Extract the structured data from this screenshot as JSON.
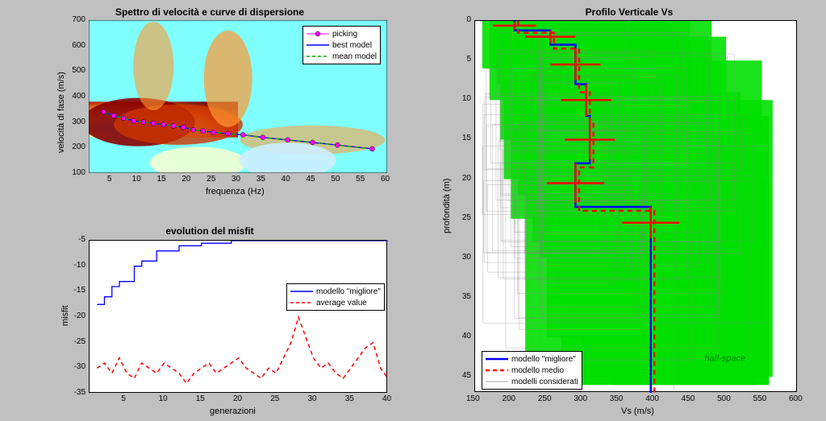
{
  "background_color": "#c0c0c0",
  "dispersion": {
    "title": "Spettro di velocità e curve di dispersione",
    "xlabel": "frequenza (Hz)",
    "ylabel": "velocità di fase (m/s)",
    "title_fontsize": 12,
    "label_fontsize": 11,
    "tick_fontsize": 10,
    "xlim": [
      0,
      60
    ],
    "ylim": [
      100,
      700
    ],
    "xticks": [
      5,
      10,
      15,
      20,
      25,
      30,
      35,
      40,
      45,
      50,
      55,
      60
    ],
    "yticks": [
      100,
      200,
      300,
      400,
      500,
      600,
      700
    ],
    "colormap_stops": [
      {
        "t": 0.0,
        "c": "#00ffff"
      },
      {
        "t": 0.2,
        "c": "#66ffff"
      },
      {
        "t": 0.4,
        "c": "#ffff66"
      },
      {
        "t": 0.6,
        "c": "#ff9933"
      },
      {
        "t": 0.8,
        "c": "#cc3300"
      },
      {
        "t": 1.0,
        "c": "#660000"
      }
    ],
    "picking_color": "#ff00ff",
    "picking_marker": "circle",
    "picking_marker_size": 6,
    "best_model_color": "#0000ff",
    "mean_model_color": "#00aa00",
    "mean_model_dash": "5,4",
    "picking_points": [
      {
        "x": 3,
        "y": 340
      },
      {
        "x": 5,
        "y": 325
      },
      {
        "x": 7,
        "y": 315
      },
      {
        "x": 9,
        "y": 305
      },
      {
        "x": 11,
        "y": 300
      },
      {
        "x": 13,
        "y": 295
      },
      {
        "x": 15,
        "y": 290
      },
      {
        "x": 17,
        "y": 285
      },
      {
        "x": 19,
        "y": 280
      },
      {
        "x": 21,
        "y": 270
      },
      {
        "x": 23,
        "y": 265
      },
      {
        "x": 25,
        "y": 260
      },
      {
        "x": 28,
        "y": 255
      },
      {
        "x": 31,
        "y": 250
      },
      {
        "x": 35,
        "y": 240
      },
      {
        "x": 40,
        "y": 230
      },
      {
        "x": 45,
        "y": 220
      },
      {
        "x": 50,
        "y": 210
      },
      {
        "x": 57,
        "y": 195
      }
    ],
    "legend": {
      "items": [
        {
          "label": "picking",
          "style": "marker",
          "color": "#ff00ff"
        },
        {
          "label": "best model",
          "style": "solid",
          "color": "#0000ff"
        },
        {
          "label": "mean model",
          "style": "dashed",
          "color": "#00aa00"
        }
      ]
    }
  },
  "misfit": {
    "title": "evolution del misfit",
    "xlabel": "generazioni",
    "ylabel": "misfit",
    "xlim": [
      0,
      40
    ],
    "ylim": [
      -35,
      -5
    ],
    "xticks": [
      5,
      10,
      15,
      20,
      25,
      30,
      35,
      40
    ],
    "yticks": [
      -35,
      -30,
      -25,
      -20,
      -15,
      -10,
      -5
    ],
    "best_color": "#0000ff",
    "avg_color": "#ff0000",
    "avg_dash": "5,4",
    "best_series": [
      {
        "x": 1,
        "y": -17.5
      },
      {
        "x": 2,
        "y": -16
      },
      {
        "x": 3,
        "y": -14
      },
      {
        "x": 4,
        "y": -13
      },
      {
        "x": 5,
        "y": -13
      },
      {
        "x": 6,
        "y": -10
      },
      {
        "x": 7,
        "y": -9
      },
      {
        "x": 8,
        "y": -9
      },
      {
        "x": 9,
        "y": -7
      },
      {
        "x": 10,
        "y": -7
      },
      {
        "x": 11,
        "y": -7
      },
      {
        "x": 12,
        "y": -6
      },
      {
        "x": 13,
        "y": -6
      },
      {
        "x": 14,
        "y": -6
      },
      {
        "x": 15,
        "y": -5.5
      },
      {
        "x": 16,
        "y": -5.5
      },
      {
        "x": 17,
        "y": -5.5
      },
      {
        "x": 18,
        "y": -5.5
      },
      {
        "x": 19,
        "y": -5
      },
      {
        "x": 20,
        "y": -5
      },
      {
        "x": 40,
        "y": -5
      }
    ],
    "avg_series": [
      {
        "x": 1,
        "y": -30
      },
      {
        "x": 2,
        "y": -29
      },
      {
        "x": 3,
        "y": -31
      },
      {
        "x": 4,
        "y": -28
      },
      {
        "x": 5,
        "y": -31
      },
      {
        "x": 6,
        "y": -32
      },
      {
        "x": 7,
        "y": -29
      },
      {
        "x": 8,
        "y": -30
      },
      {
        "x": 9,
        "y": -31
      },
      {
        "x": 10,
        "y": -29
      },
      {
        "x": 11,
        "y": -30
      },
      {
        "x": 12,
        "y": -31
      },
      {
        "x": 13,
        "y": -33
      },
      {
        "x": 14,
        "y": -31
      },
      {
        "x": 15,
        "y": -30
      },
      {
        "x": 16,
        "y": -29
      },
      {
        "x": 17,
        "y": -31
      },
      {
        "x": 18,
        "y": -30
      },
      {
        "x": 19,
        "y": -29
      },
      {
        "x": 20,
        "y": -28
      },
      {
        "x": 21,
        "y": -30
      },
      {
        "x": 22,
        "y": -31
      },
      {
        "x": 23,
        "y": -32
      },
      {
        "x": 24,
        "y": -30
      },
      {
        "x": 25,
        "y": -31
      },
      {
        "x": 26,
        "y": -28
      },
      {
        "x": 27,
        "y": -25
      },
      {
        "x": 28,
        "y": -20
      },
      {
        "x": 29,
        "y": -24
      },
      {
        "x": 30,
        "y": -28
      },
      {
        "x": 31,
        "y": -30
      },
      {
        "x": 32,
        "y": -29
      },
      {
        "x": 33,
        "y": -31
      },
      {
        "x": 34,
        "y": -32
      },
      {
        "x": 35,
        "y": -30
      },
      {
        "x": 36,
        "y": -28
      },
      {
        "x": 37,
        "y": -26
      },
      {
        "x": 38,
        "y": -25
      },
      {
        "x": 39,
        "y": -30
      },
      {
        "x": 40,
        "y": -32
      }
    ],
    "legend": {
      "items": [
        {
          "label": "modello \"migliore\"",
          "style": "solid",
          "color": "#0000ff"
        },
        {
          "label": "average value",
          "style": "dashed",
          "color": "#ff0000"
        }
      ]
    }
  },
  "profile": {
    "title": "Profilo Verticale Vs",
    "xlabel": "Vs (m/s)",
    "ylabel": "profondità (m)",
    "xlim": [
      150,
      600
    ],
    "ylim": [
      0,
      47
    ],
    "xticks": [
      150,
      200,
      250,
      300,
      350,
      400,
      450,
      500,
      550,
      600
    ],
    "yticks": [
      0,
      5,
      10,
      15,
      20,
      25,
      30,
      35,
      40,
      45
    ],
    "models_fill_color": "#00e000",
    "models_stroke_color": "#888888",
    "best_color": "#0000ff",
    "best_width": 2.5,
    "mean_color": "#ff0000",
    "mean_width": 2.5,
    "mean_dash": "6,5",
    "halfspace_label": "half-space",
    "halfspace_color": "#008800",
    "best_profile": [
      {
        "vs": 205,
        "depth": 0
      },
      {
        "vs": 205,
        "depth": 1.2
      },
      {
        "vs": 255,
        "depth": 1.2
      },
      {
        "vs": 255,
        "depth": 3
      },
      {
        "vs": 290,
        "depth": 3
      },
      {
        "vs": 290,
        "depth": 8
      },
      {
        "vs": 305,
        "depth": 8
      },
      {
        "vs": 305,
        "depth": 12
      },
      {
        "vs": 310,
        "depth": 12
      },
      {
        "vs": 310,
        "depth": 18
      },
      {
        "vs": 290,
        "depth": 18
      },
      {
        "vs": 290,
        "depth": 23.5
      },
      {
        "vs": 395,
        "depth": 23.5
      },
      {
        "vs": 395,
        "depth": 47
      }
    ],
    "mean_profile": [
      {
        "vs": 210,
        "depth": 0
      },
      {
        "vs": 210,
        "depth": 1.5
      },
      {
        "vs": 260,
        "depth": 1.5
      },
      {
        "vs": 260,
        "depth": 3.5
      },
      {
        "vs": 295,
        "depth": 3.5
      },
      {
        "vs": 295,
        "depth": 9
      },
      {
        "vs": 310,
        "depth": 9
      },
      {
        "vs": 310,
        "depth": 13
      },
      {
        "vs": 315,
        "depth": 13
      },
      {
        "vs": 315,
        "depth": 18.5
      },
      {
        "vs": 295,
        "depth": 18.5
      },
      {
        "vs": 295,
        "depth": 24
      },
      {
        "vs": 400,
        "depth": 24
      },
      {
        "vs": 400,
        "depth": 47
      }
    ],
    "error_bars": [
      {
        "vs": 205,
        "depth": 0.6,
        "dvs": 30,
        "dd": 0.5
      },
      {
        "vs": 255,
        "depth": 2,
        "dvs": 35,
        "dd": 0.8
      },
      {
        "vs": 290,
        "depth": 5.5,
        "dvs": 35,
        "dd": 2
      },
      {
        "vs": 305,
        "depth": 10,
        "dvs": 35,
        "dd": 2
      },
      {
        "vs": 310,
        "depth": 15,
        "dvs": 35,
        "dd": 2.5
      },
      {
        "vs": 290,
        "depth": 20.5,
        "dvs": 40,
        "dd": 2.5
      },
      {
        "vs": 395,
        "depth": 25.5,
        "dvs": 40,
        "dd": 2
      }
    ],
    "model_cloud": [
      {
        "v1": 170,
        "v2": 420,
        "d1": 0,
        "d2": 10
      },
      {
        "v1": 185,
        "v2": 450,
        "d1": 0,
        "d2": 15
      },
      {
        "v1": 200,
        "v2": 480,
        "d1": 0,
        "d2": 25
      },
      {
        "v1": 220,
        "v2": 565,
        "d1": 10,
        "d2": 45
      },
      {
        "v1": 250,
        "v2": 550,
        "d1": 5,
        "d2": 40
      },
      {
        "v1": 160,
        "v2": 400,
        "d1": 0,
        "d2": 6
      },
      {
        "v1": 240,
        "v2": 500,
        "d1": 2,
        "d2": 30
      },
      {
        "v1": 190,
        "v2": 370,
        "d1": 0,
        "d2": 20
      },
      {
        "v1": 270,
        "v2": 560,
        "d1": 12,
        "d2": 46
      },
      {
        "v1": 300,
        "v2": 540,
        "d1": 18,
        "d2": 46
      },
      {
        "v1": 180,
        "v2": 340,
        "d1": 0,
        "d2": 8
      },
      {
        "v1": 210,
        "v2": 430,
        "d1": 3,
        "d2": 22
      },
      {
        "v1": 230,
        "v2": 460,
        "d1": 6,
        "d2": 28
      },
      {
        "v1": 260,
        "v2": 520,
        "d1": 9,
        "d2": 35
      },
      {
        "v1": 340,
        "v2": 560,
        "d1": 20,
        "d2": 46
      }
    ],
    "legend": {
      "items": [
        {
          "label": "modello \"migliore\"",
          "style": "solid",
          "color": "#0000ff"
        },
        {
          "label": "modello medio",
          "style": "dashed",
          "color": "#ff0000"
        },
        {
          "label": "modelli considerati",
          "style": "thin",
          "color": "#888888"
        }
      ]
    }
  }
}
